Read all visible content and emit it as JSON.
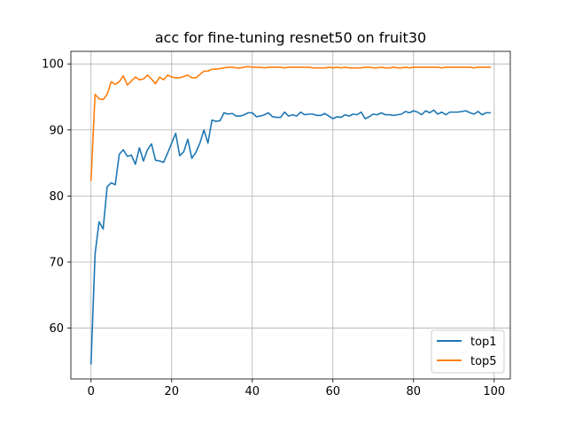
{
  "chart_data": {
    "type": "line",
    "title": "acc for fine-tuning resnet50 on fruit30",
    "xlabel": "",
    "ylabel": "",
    "xlim": [
      -5,
      104
    ],
    "ylim": [
      52.3,
      101.9
    ],
    "xticks": [
      0,
      20,
      40,
      60,
      80,
      100
    ],
    "yticks": [
      60,
      70,
      80,
      90,
      100
    ],
    "grid": true,
    "legend": "lower-right",
    "x": [
      0,
      1,
      2,
      3,
      4,
      5,
      6,
      7,
      8,
      9,
      10,
      11,
      12,
      13,
      14,
      15,
      16,
      17,
      18,
      19,
      20,
      21,
      22,
      23,
      24,
      25,
      26,
      27,
      28,
      29,
      30,
      31,
      32,
      33,
      34,
      35,
      36,
      37,
      38,
      39,
      40,
      41,
      42,
      43,
      44,
      45,
      46,
      47,
      48,
      49,
      50,
      51,
      52,
      53,
      54,
      55,
      56,
      57,
      58,
      59,
      60,
      61,
      62,
      63,
      64,
      65,
      66,
      67,
      68,
      69,
      70,
      71,
      72,
      73,
      74,
      75,
      76,
      77,
      78,
      79,
      80,
      81,
      82,
      83,
      84,
      85,
      86,
      87,
      88,
      89,
      90,
      91,
      92,
      93,
      94,
      95,
      96,
      97,
      98,
      99
    ],
    "series": [
      {
        "name": "top1",
        "color": "#1f77b4",
        "values": [
          54.6,
          71.2,
          76.1,
          75.0,
          81.4,
          82.0,
          81.7,
          86.3,
          87.0,
          86.0,
          86.2,
          84.8,
          87.3,
          85.3,
          87.0,
          87.9,
          85.4,
          85.3,
          85.1,
          86.5,
          88.0,
          89.5,
          86.1,
          86.7,
          88.6,
          85.7,
          86.6,
          88.0,
          90.0,
          88.0,
          91.5,
          91.3,
          91.4,
          92.6,
          92.4,
          92.5,
          92.1,
          92.1,
          92.3,
          92.6,
          92.6,
          92.0,
          92.1,
          92.3,
          92.6,
          92.0,
          91.9,
          91.9,
          92.7,
          92.1,
          92.3,
          92.1,
          92.7,
          92.3,
          92.4,
          92.4,
          92.2,
          92.2,
          92.5,
          92.1,
          91.7,
          92.0,
          91.9,
          92.3,
          92.1,
          92.4,
          92.3,
          92.7,
          91.7,
          92.0,
          92.4,
          92.3,
          92.6,
          92.3,
          92.3,
          92.2,
          92.3,
          92.4,
          92.8,
          92.6,
          92.9,
          92.7,
          92.3,
          92.9,
          92.6,
          93.0,
          92.4,
          92.7,
          92.3,
          92.7,
          92.7,
          92.7,
          92.8,
          92.9,
          92.6,
          92.4,
          92.8,
          92.3,
          92.6,
          92.6
        ]
      },
      {
        "name": "top5",
        "color": "#ff7f0e",
        "values": [
          82.4,
          95.4,
          94.7,
          94.6,
          95.4,
          97.3,
          96.9,
          97.3,
          98.2,
          96.8,
          97.4,
          98.0,
          97.6,
          97.7,
          98.3,
          97.7,
          97.0,
          98.0,
          97.6,
          98.3,
          98.0,
          97.9,
          97.9,
          98.1,
          98.3,
          97.9,
          97.9,
          98.4,
          98.9,
          98.9,
          99.2,
          99.2,
          99.3,
          99.4,
          99.5,
          99.5,
          99.4,
          99.4,
          99.5,
          99.6,
          99.5,
          99.5,
          99.5,
          99.4,
          99.5,
          99.5,
          99.5,
          99.5,
          99.4,
          99.5,
          99.5,
          99.5,
          99.5,
          99.5,
          99.5,
          99.4,
          99.4,
          99.4,
          99.4,
          99.5,
          99.4,
          99.5,
          99.4,
          99.5,
          99.4,
          99.4,
          99.4,
          99.4,
          99.5,
          99.5,
          99.4,
          99.4,
          99.5,
          99.4,
          99.4,
          99.5,
          99.4,
          99.4,
          99.5,
          99.4,
          99.5,
          99.5,
          99.5,
          99.5,
          99.5,
          99.5,
          99.5,
          99.4,
          99.5,
          99.5,
          99.5,
          99.5,
          99.5,
          99.5,
          99.5,
          99.4,
          99.5,
          99.5,
          99.5,
          99.5
        ]
      }
    ]
  }
}
